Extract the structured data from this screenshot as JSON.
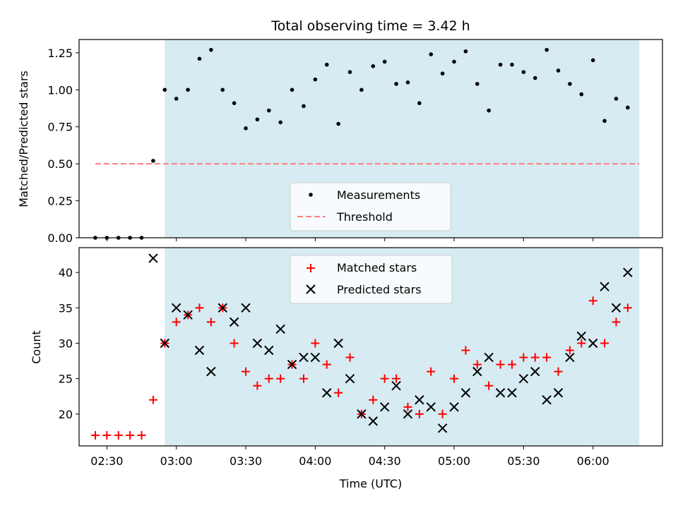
{
  "chart_data": [
    {
      "type": "scatter",
      "title": "Total observing time = 3.42 h",
      "xlabel": "",
      "ylabel": "Matched/Predicted stars",
      "ylim": [
        0.0,
        1.34
      ],
      "yticks": [
        "0.00",
        "0.25",
        "0.50",
        "0.75",
        "1.00",
        "1.25"
      ],
      "legend": {
        "placement": "bottom-center",
        "entries": [
          "Measurements",
          "Threshold"
        ]
      },
      "observing_window": [
        "02:55",
        "06:20"
      ],
      "colors": {
        "measurements": "#000000",
        "threshold": "#ff7f7f",
        "window": "#add8e6"
      },
      "threshold": {
        "value": 0.5,
        "x_range": [
          "02:25",
          "06:20"
        ]
      },
      "series": [
        {
          "name": "Measurements",
          "x": [
            "02:25",
            "02:30",
            "02:35",
            "02:40",
            "02:45",
            "02:50",
            "02:55",
            "03:00",
            "03:05",
            "03:10",
            "03:15",
            "03:20",
            "03:25",
            "03:30",
            "03:35",
            "03:40",
            "03:45",
            "03:50",
            "03:55",
            "04:00",
            "04:05",
            "04:10",
            "04:15",
            "04:20",
            "04:25",
            "04:30",
            "04:35",
            "04:40",
            "04:45",
            "04:50",
            "04:55",
            "05:00",
            "05:05",
            "05:10",
            "05:15",
            "05:20",
            "05:25",
            "05:30",
            "05:35",
            "05:40",
            "05:45",
            "05:50",
            "05:55",
            "06:00",
            "06:05",
            "06:10",
            "06:15"
          ],
          "y": [
            0,
            0,
            0,
            0,
            0,
            0.52,
            1.0,
            0.94,
            1.0,
            1.21,
            1.27,
            1.0,
            0.91,
            0.74,
            0.8,
            0.86,
            0.78,
            1.0,
            0.89,
            1.07,
            1.17,
            0.77,
            1.12,
            1.0,
            1.16,
            1.19,
            1.04,
            1.05,
            0.91,
            1.24,
            1.11,
            1.19,
            1.26,
            1.04,
            0.86,
            1.17,
            1.17,
            1.12,
            1.08,
            1.27,
            1.13,
            1.04,
            0.97,
            1.2,
            0.79,
            0.94,
            0.88
          ]
        }
      ]
    },
    {
      "type": "scatter",
      "title": "",
      "xlabel": "Time (UTC)",
      "ylabel": "Count",
      "ylim": [
        15.5,
        43.5
      ],
      "yticks": [
        "20",
        "25",
        "30",
        "35",
        "40"
      ],
      "xticks": [
        "02:30",
        "03:00",
        "03:30",
        "04:00",
        "04:30",
        "05:00",
        "05:30",
        "06:00"
      ],
      "legend": {
        "placement": "top-center",
        "entries": [
          "Matched stars",
          "Predicted stars"
        ]
      },
      "observing_window": [
        "02:55",
        "06:20"
      ],
      "colors": {
        "matched": "#ff0000",
        "predicted": "#000000",
        "window": "#add8e6"
      },
      "x": [
        "02:25",
        "02:30",
        "02:35",
        "02:40",
        "02:45",
        "02:50",
        "02:55",
        "03:00",
        "03:05",
        "03:10",
        "03:15",
        "03:20",
        "03:25",
        "03:30",
        "03:35",
        "03:40",
        "03:45",
        "03:50",
        "03:55",
        "04:00",
        "04:05",
        "04:10",
        "04:15",
        "04:20",
        "04:25",
        "04:30",
        "04:35",
        "04:40",
        "04:45",
        "04:50",
        "04:55",
        "05:00",
        "05:05",
        "05:10",
        "05:15",
        "05:20",
        "05:25",
        "05:30",
        "05:35",
        "05:40",
        "05:45",
        "05:50",
        "05:55",
        "06:00",
        "06:05",
        "06:10",
        "06:15"
      ],
      "series": [
        {
          "name": "Matched stars",
          "marker": "plus",
          "values": [
            17,
            17,
            17,
            17,
            17,
            22,
            30,
            33,
            34,
            35,
            33,
            35,
            30,
            26,
            24,
            25,
            25,
            27,
            25,
            30,
            27,
            23,
            28,
            20,
            22,
            25,
            25,
            21,
            20,
            26,
            20,
            25,
            29,
            27,
            24,
            27,
            27,
            28,
            28,
            28,
            26,
            29,
            30,
            36,
            30,
            33,
            35
          ]
        },
        {
          "name": "Predicted stars",
          "marker": "x",
          "values": [
            null,
            null,
            null,
            null,
            null,
            42,
            30,
            35,
            34,
            29,
            26,
            35,
            33,
            35,
            30,
            29,
            32,
            27,
            28,
            28,
            23,
            30,
            25,
            20,
            19,
            21,
            24,
            20,
            22,
            21,
            18,
            21,
            23,
            26,
            28,
            23,
            23,
            25,
            26,
            22,
            23,
            28,
            31,
            30,
            38,
            35,
            40
          ]
        }
      ]
    }
  ]
}
